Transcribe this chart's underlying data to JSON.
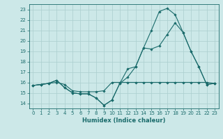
{
  "xlabel": "Humidex (Indice chaleur)",
  "bg_color": "#cce8e8",
  "line_color": "#1a6b6b",
  "grid_color": "#aacece",
  "xlim": [
    -0.5,
    23.5
  ],
  "ylim": [
    13.5,
    23.5
  ],
  "xticks": [
    0,
    1,
    2,
    3,
    4,
    5,
    6,
    7,
    8,
    9,
    10,
    11,
    12,
    13,
    14,
    15,
    16,
    17,
    18,
    19,
    20,
    21,
    22,
    23
  ],
  "yticks": [
    14,
    15,
    16,
    17,
    18,
    19,
    20,
    21,
    22,
    23
  ],
  "series1_x": [
    0,
    1,
    2,
    3,
    4,
    5,
    6,
    7,
    8,
    9,
    10,
    11,
    12,
    13,
    14,
    15,
    16,
    17,
    18,
    19,
    20,
    21,
    22,
    23
  ],
  "series1_y": [
    15.7,
    15.8,
    15.9,
    16.0,
    15.8,
    15.2,
    15.1,
    15.1,
    15.1,
    15.2,
    16.0,
    16.0,
    16.0,
    16.0,
    16.0,
    16.0,
    16.0,
    16.0,
    16.0,
    16.0,
    16.0,
    16.0,
    16.0,
    15.9
  ],
  "series2_x": [
    0,
    1,
    2,
    3,
    4,
    5,
    6,
    7,
    8,
    9,
    10,
    11,
    12,
    13,
    14,
    15,
    16,
    17,
    18,
    19,
    20,
    21,
    22,
    23
  ],
  "series2_y": [
    15.7,
    15.8,
    15.9,
    16.2,
    15.5,
    15.0,
    14.9,
    14.9,
    14.5,
    13.8,
    14.3,
    15.9,
    16.5,
    17.5,
    19.3,
    19.2,
    19.5,
    20.6,
    21.7,
    20.8,
    19.0,
    17.5,
    15.8,
    15.9
  ],
  "series3_x": [
    0,
    1,
    2,
    3,
    4,
    5,
    6,
    7,
    8,
    9,
    10,
    11,
    12,
    13,
    14,
    15,
    16,
    17,
    18,
    19,
    20,
    21,
    22,
    23
  ],
  "series3_y": [
    15.7,
    15.8,
    15.9,
    16.2,
    15.5,
    15.0,
    14.9,
    14.9,
    14.5,
    13.8,
    14.3,
    15.9,
    17.3,
    17.5,
    19.3,
    21.0,
    22.8,
    23.1,
    22.5,
    20.8,
    19.0,
    17.5,
    15.8,
    15.9
  ]
}
